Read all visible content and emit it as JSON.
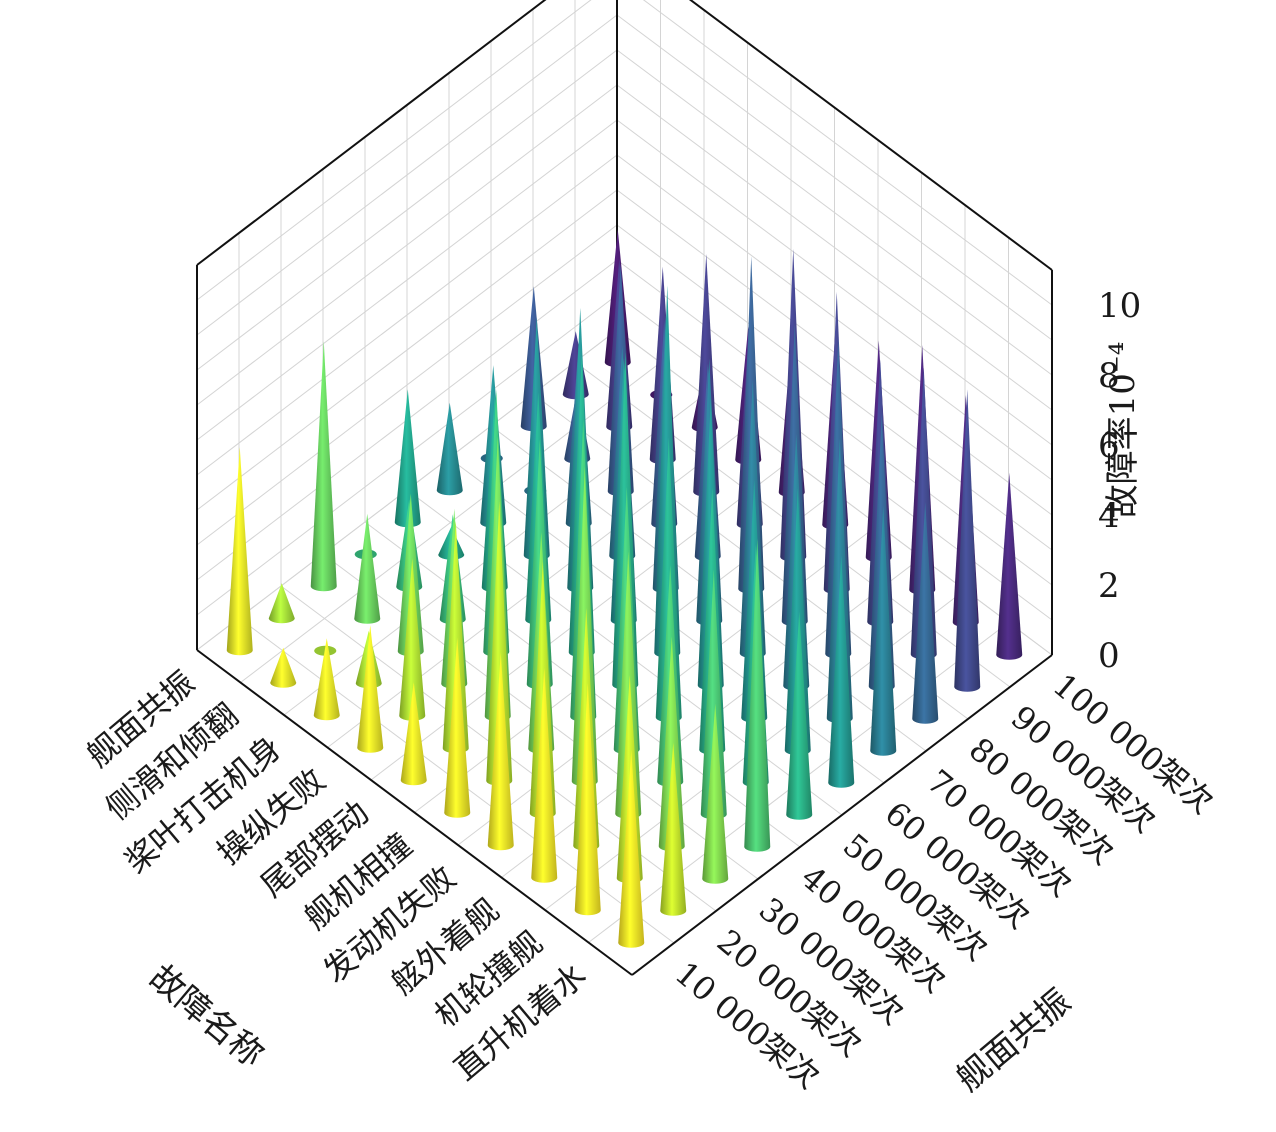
{
  "chart_data": {
    "type": "3d-cone",
    "zlabel": "故障率10⁻⁴",
    "xlabel": "故障名称",
    "ylabel": "舰面共振",
    "zlim": [
      0,
      11
    ],
    "z_ticks": [
      "0",
      "2",
      "4",
      "6",
      "8",
      "10"
    ],
    "categories": [
      "直升机着水",
      "机轮撞舰",
      "舷外着舰",
      "发动机失败",
      "舰机相撞",
      "尾部摆动",
      "操纵失败",
      "桨叶打击机身",
      "侧滑和倾翻",
      "舰面共振"
    ],
    "sorties": [
      "10 000架次",
      "20 000架次",
      "30 000架次",
      "40 000架次",
      "50 000架次",
      "60 000架次",
      "70 000架次",
      "80 000架次",
      "90 000架次",
      "100 000架次"
    ],
    "grid": true,
    "colormap": "viridis",
    "values": [
      [
        5.5,
        4.8,
        5.0,
        8.8,
        5.8,
        6.5,
        7.0,
        6.2,
        8.5,
        5.2
      ],
      [
        6.5,
        5.8,
        6.0,
        7.0,
        6.8,
        7.5,
        8.0,
        7.8,
        8.2,
        6.5
      ],
      [
        6.0,
        6.8,
        7.5,
        6.2,
        7.5,
        6.8,
        7.2,
        9.0,
        7.5,
        7.0
      ],
      [
        5.5,
        7.2,
        9.0,
        7.5,
        8.0,
        8.2,
        7.8,
        8.5,
        8.5,
        6.2
      ],
      [
        5.0,
        8.0,
        6.2,
        8.5,
        9.5,
        10.5,
        7.5,
        9.5,
        8.8,
        5.5
      ],
      [
        2.8,
        6.5,
        8.0,
        7.0,
        8.5,
        7.5,
        7.8,
        5.5,
        6.0,
        4.5
      ],
      [
        3.5,
        4.5,
        5.0,
        7.5,
        6.5,
        8.0,
        6.0,
        5.8,
        6.8,
        3.8
      ],
      [
        2.2,
        1.5,
        4.5,
        3.0,
        5.5,
        6.8,
        5.2,
        6.5,
        5.5,
        1.8
      ],
      [
        1.0,
        0.0,
        3.0,
        2.5,
        0.8,
        4.5,
        0.0,
        2.0,
        4.8,
        0.0
      ],
      [
        5.8,
        1.0,
        7.0,
        0.0,
        3.8,
        2.5,
        0.0,
        4.0,
        1.8,
        3.8
      ]
    ]
  }
}
